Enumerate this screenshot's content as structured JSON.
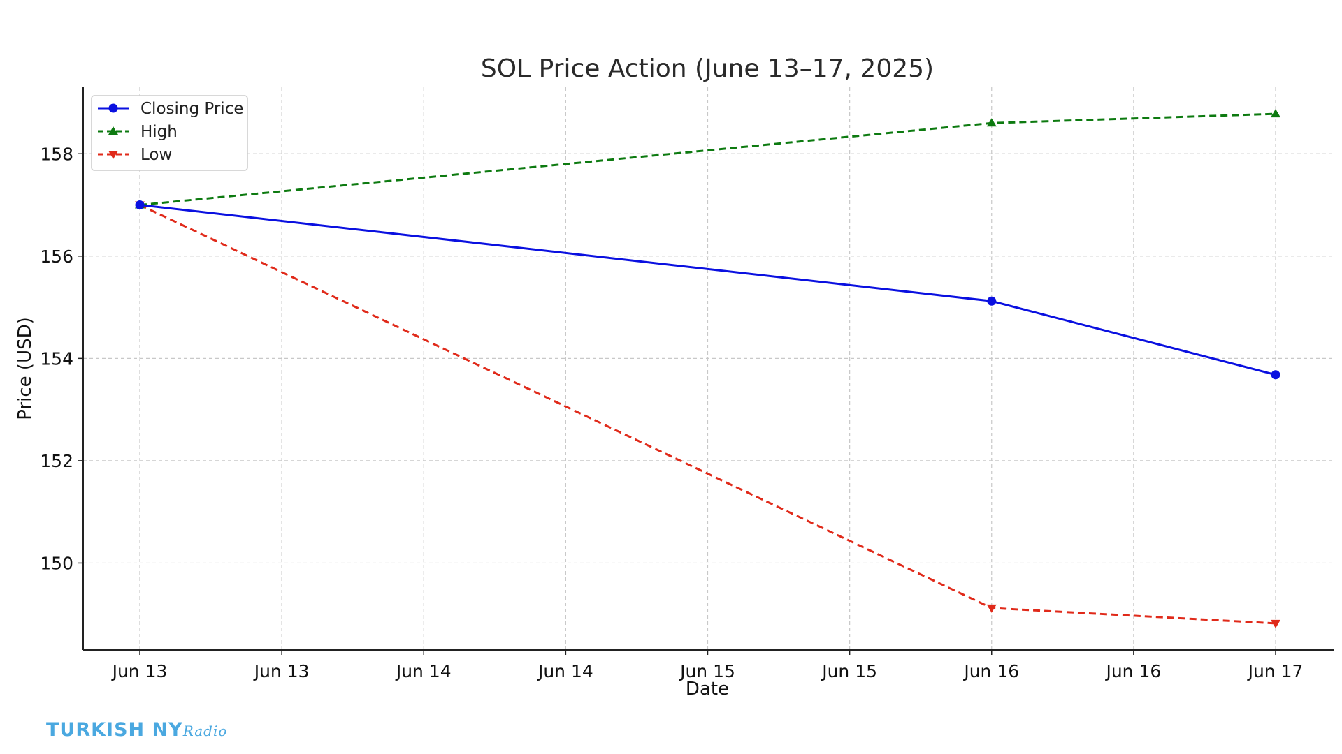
{
  "chart_data": {
    "type": "line",
    "title": "SOL Price Action (June 13–17, 2025)",
    "xlabel": "Date",
    "ylabel": "Price (USD)",
    "x_dates": [
      "2025-06-13",
      "2025-06-16",
      "2025-06-17"
    ],
    "x_tick_dates": [
      "2025-06-13T00",
      "2025-06-13T12",
      "2025-06-14T00",
      "2025-06-14T12",
      "2025-06-15T00",
      "2025-06-15T12",
      "2025-06-16T00",
      "2025-06-16T12",
      "2025-06-17T00"
    ],
    "x_tick_labels": [
      "Jun 13",
      "Jun 13",
      "Jun 14",
      "Jun 14",
      "Jun 15",
      "Jun 15",
      "Jun 16",
      "Jun 16",
      "Jun 17"
    ],
    "yticks": [
      150,
      152,
      154,
      156,
      158
    ],
    "ylim": [
      148.3,
      159.3
    ],
    "grid": true,
    "legend_position": "top-left",
    "series": [
      {
        "name": "Closing Price",
        "values": [
          157.0,
          155.12,
          153.68
        ],
        "color": "#0a10e0",
        "dash": "solid",
        "marker": "circle"
      },
      {
        "name": "High",
        "values": [
          157.0,
          158.6,
          158.78
        ],
        "color": "#0d7a10",
        "dash": "dashed",
        "marker": "triangle-up"
      },
      {
        "name": "Low",
        "values": [
          157.0,
          149.12,
          148.82
        ],
        "color": "#e02a1a",
        "dash": "dashed",
        "marker": "triangle-down"
      }
    ]
  },
  "watermark": {
    "text": "TURKISH NY",
    "script": "Radio"
  }
}
